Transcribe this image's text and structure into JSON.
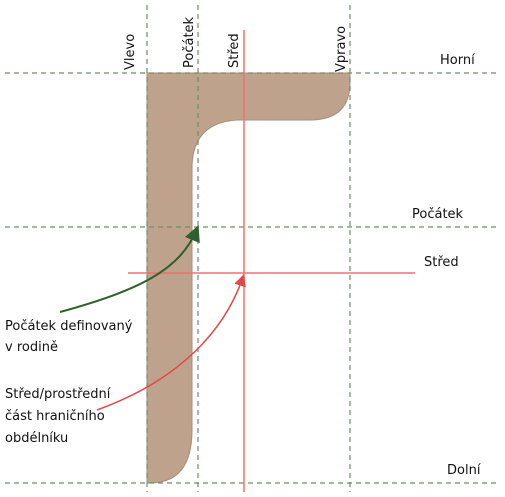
{
  "vertical_labels": [
    "Vlevo",
    "Počátek",
    "Střed",
    "Vpravo"
  ],
  "horizontal_labels": [
    "Horní",
    "Počátek",
    "Střed",
    "Dolní"
  ],
  "callouts": [
    {
      "lines": [
        "Počátek definovaný",
        "v rodině"
      ]
    },
    {
      "lines": [
        "Střed/prostřední",
        "část hraničního",
        "obdélníku"
      ]
    }
  ]
}
